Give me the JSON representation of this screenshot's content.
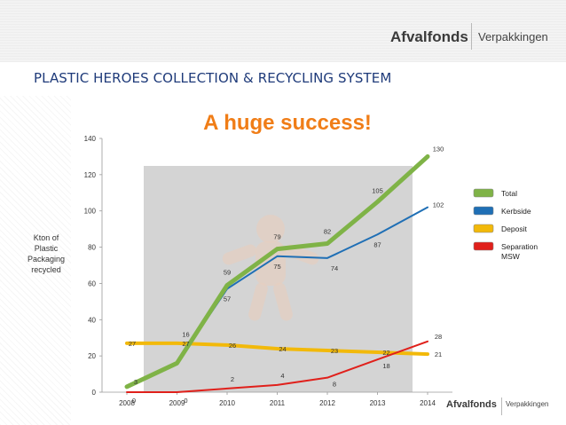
{
  "header": {
    "logo_main": "Afvalfonds",
    "logo_sub": "Verpakkingen",
    "slide_title": "PLASTIC HEROES COLLECTION & RECYCLING SYSTEM"
  },
  "footer": {
    "logo_main": "Afvalfonds",
    "logo_sub": "Verpakkingen"
  },
  "colors": {
    "brand_green": "#8bbf3a",
    "title_orange": "#f07d17"
  },
  "chart_data": {
    "type": "line",
    "title": "A huge success!",
    "ylabel": [
      "Kton of",
      "Plastic",
      "Packaging",
      "recycled"
    ],
    "x": [
      "2008",
      "2009",
      "2010",
      "2011",
      "2012",
      "2013",
      "2014"
    ],
    "ylim": [
      0,
      140
    ],
    "yticks": [
      "0",
      "20",
      "40",
      "60",
      "80",
      "100",
      "120",
      "140"
    ],
    "grid": false,
    "legend_position": "right",
    "series": [
      {
        "name": "Total",
        "color": "#7fb347",
        "values": [
          3,
          16,
          59,
          79,
          82,
          105,
          130
        ],
        "labels": [
          "3",
          "16",
          "59",
          "79",
          "82",
          "105",
          "130"
        ]
      },
      {
        "name": "Kerbside",
        "color": "#1f6fb5",
        "values": [
          3,
          16,
          57,
          75,
          74,
          87,
          102
        ],
        "labels": [
          "",
          "",
          "57",
          "75",
          "74",
          "87",
          "102"
        ]
      },
      {
        "name": "Deposit",
        "color": "#f2b90a",
        "values": [
          27,
          27,
          26,
          24,
          23,
          22,
          21
        ],
        "labels": [
          "27",
          "27",
          "26",
          "24",
          "23",
          "22",
          "21"
        ]
      },
      {
        "name": "Separation MSW",
        "legend_lines": [
          "Separation",
          "MSW"
        ],
        "color": "#e0201b",
        "values": [
          0,
          0,
          2,
          4,
          8,
          18,
          28
        ],
        "labels": [
          "0",
          "0",
          "2",
          "4",
          "8",
          "18",
          "28"
        ]
      }
    ]
  }
}
